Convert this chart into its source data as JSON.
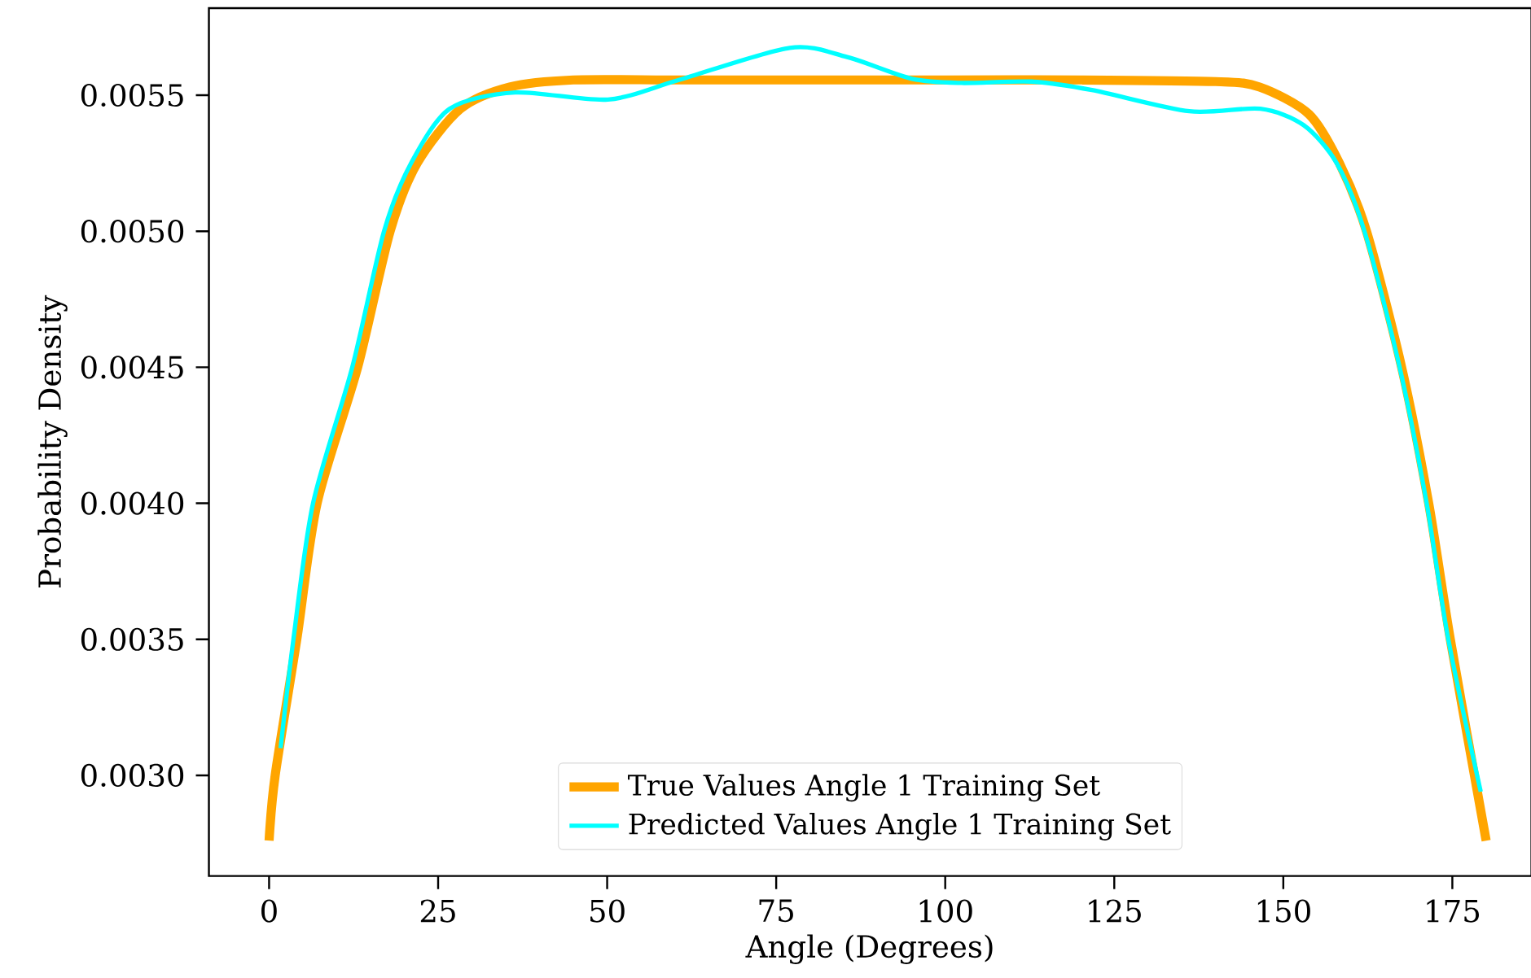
{
  "chart_data": {
    "type": "line",
    "xlabel": "Angle (Degrees)",
    "ylabel": "Probability Density",
    "xlim": [
      -8.9,
      186.7
    ],
    "ylim": [
      0.00263,
      0.00582
    ],
    "xticks": [
      0,
      25,
      50,
      75,
      100,
      125,
      150,
      175
    ],
    "yticks": [
      {
        "value": 0.003,
        "label": "0.0030"
      },
      {
        "value": 0.0035,
        "label": "0.0035"
      },
      {
        "value": 0.004,
        "label": "0.0040"
      },
      {
        "value": 0.0045,
        "label": "0.0045"
      },
      {
        "value": 0.005,
        "label": "0.0050"
      },
      {
        "value": 0.0055,
        "label": "0.0055"
      }
    ],
    "legend": "bottom",
    "series": [
      {
        "name": "True Values Angle 1 Training Set",
        "color": "#ffa500",
        "x": [
          0,
          0.9,
          4.1,
          7.1,
          13.1,
          17.9,
          21.9,
          28.3,
          35.6,
          45,
          60,
          80,
          100,
          120,
          140,
          146.5,
          153.8,
          158.3,
          162.3,
          167.5,
          171.5,
          174.7,
          180
        ],
        "values": [
          0.00276,
          0.003,
          0.0035,
          0.004,
          0.0045,
          0.005,
          0.00525,
          0.00545,
          0.00553,
          0.005556,
          0.005556,
          0.005556,
          0.005556,
          0.005556,
          0.00555,
          0.00553,
          0.00543,
          0.00525,
          0.005,
          0.0045,
          0.004,
          0.0035,
          0.00276
        ]
      },
      {
        "name": "Predicted Values Angle 1 Training Set",
        "color": "#00ffff",
        "x": [
          1.7,
          3.6,
          6.5,
          12.3,
          17,
          21,
          26.7,
          36.4,
          50.1,
          60.6,
          77,
          85.5,
          95.1,
          102.4,
          112.8,
          121.7,
          136.1,
          146.6,
          153,
          157.9,
          162,
          167.2,
          171.2,
          174.4,
          179.2
        ],
        "values": [
          0.0031,
          0.0035,
          0.004,
          0.0045,
          0.005,
          0.00525,
          0.00545,
          0.00551,
          0.005484,
          0.005556,
          0.005674,
          0.00564,
          0.00556,
          0.005545,
          0.00555,
          0.005519,
          0.005441,
          0.00545,
          0.00539,
          0.00525,
          0.005,
          0.0045,
          0.004,
          0.0035,
          0.00294
        ]
      }
    ]
  }
}
